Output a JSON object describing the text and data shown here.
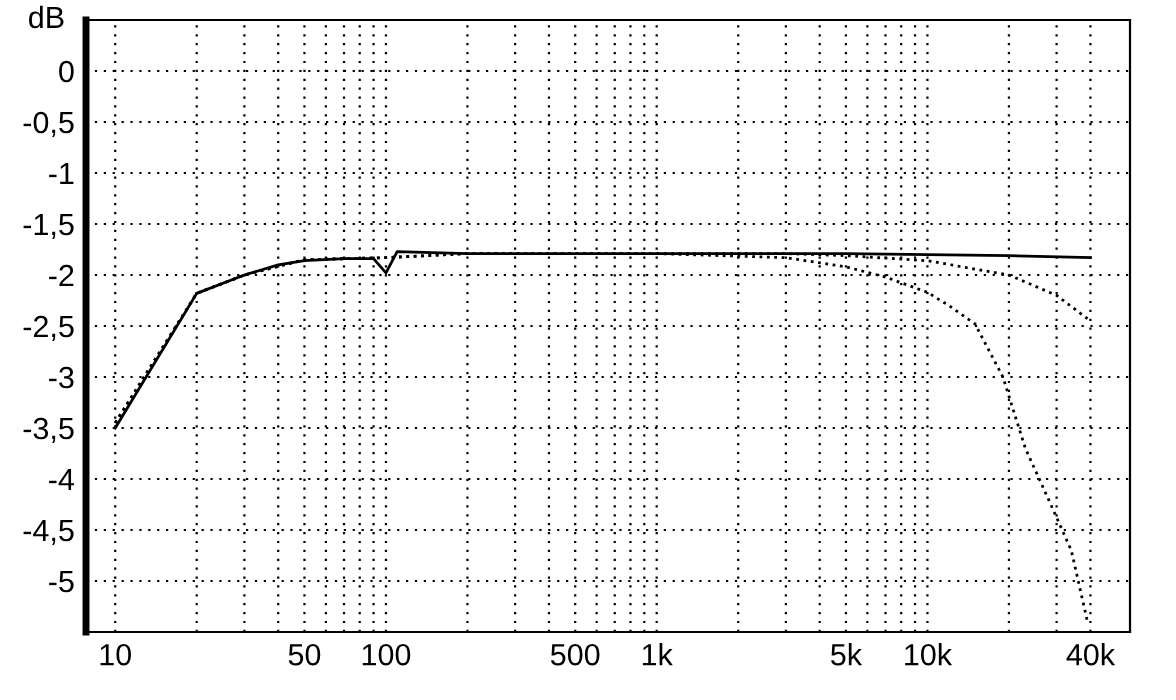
{
  "chart_data": {
    "type": "line",
    "ylabel": "dB",
    "log": "x",
    "grid": true,
    "marker": "none",
    "xlim": [
      7.8,
      56000
    ],
    "ylim": [
      -5.5,
      0.5
    ],
    "xticks": [
      10,
      {
        "value": 20,
        "label": null
      },
      {
        "value": 30,
        "label": null
      },
      {
        "value": 40,
        "label": null
      },
      50,
      {
        "value": 60,
        "label": null
      },
      {
        "value": 70,
        "label": null
      },
      {
        "value": 80,
        "label": null
      },
      {
        "value": 90,
        "label": null
      },
      100,
      {
        "value": 200,
        "label": null
      },
      {
        "value": 300,
        "label": null
      },
      {
        "value": 400,
        "label": null
      },
      500,
      {
        "value": 600,
        "label": null
      },
      {
        "value": 700,
        "label": null
      },
      {
        "value": 800,
        "label": null
      },
      {
        "value": 900,
        "label": null
      },
      {
        "value": 1000,
        "label": "1k"
      },
      {
        "value": 2000,
        "label": null
      },
      {
        "value": 3000,
        "label": null
      },
      {
        "value": 4000,
        "label": null
      },
      {
        "value": 5000,
        "label": "5k"
      },
      {
        "value": 6000,
        "label": null
      },
      {
        "value": 7000,
        "label": null
      },
      {
        "value": 8000,
        "label": null
      },
      {
        "value": 9000,
        "label": null
      },
      {
        "value": 10000,
        "label": "10k"
      },
      {
        "value": 20000,
        "label": null
      },
      {
        "value": 30000,
        "label": null
      },
      {
        "value": 40000,
        "label": "40k"
      }
    ],
    "yticks": [
      0,
      {
        "value": -0.5,
        "label": "-0,5"
      },
      {
        "value": -1,
        "label": "-1"
      },
      {
        "value": -1.5,
        "label": "-1,5"
      },
      {
        "value": -2,
        "label": "-2"
      },
      {
        "value": -2.5,
        "label": "-2,5"
      },
      {
        "value": -3,
        "label": "-3"
      },
      {
        "value": -3.5,
        "label": "-3,5"
      },
      {
        "value": -4,
        "label": "-4"
      },
      {
        "value": -4.5,
        "label": "-4,5"
      },
      {
        "value": -5,
        "label": "-5"
      }
    ],
    "series": [
      {
        "color": "#000000",
        "line_style": "solid",
        "x": [
          10,
          20,
          30,
          40,
          50,
          70,
          90,
          100,
          110,
          200,
          500,
          1000,
          5000,
          10000,
          20000,
          40000
        ],
        "values": [
          -3.5,
          -2.18,
          -2.0,
          -1.9,
          -1.86,
          -1.84,
          -1.84,
          -1.98,
          -1.77,
          -1.79,
          -1.79,
          -1.79,
          -1.79,
          -1.8,
          -1.81,
          -1.83
        ]
      },
      {
        "color": "#000000",
        "line_style": "dotted",
        "x": [
          10,
          20,
          30,
          50,
          100,
          200,
          1000,
          3000,
          5000,
          10000,
          20000,
          30000,
          40000
        ],
        "values": [
          -3.45,
          -2.18,
          -2.0,
          -1.85,
          -1.83,
          -1.79,
          -1.79,
          -1.79,
          -1.81,
          -1.86,
          -2.0,
          -2.2,
          -2.45
        ]
      },
      {
        "color": "#000000",
        "line_style": "dotted",
        "x": [
          10,
          20,
          30,
          50,
          100,
          200,
          1000,
          3000,
          5000,
          7000,
          10000,
          12000,
          15000,
          19000,
          23000,
          28000,
          34000,
          39000
        ],
        "values": [
          -3.45,
          -2.18,
          -2.0,
          -1.85,
          -1.83,
          -1.79,
          -1.79,
          -1.83,
          -1.92,
          -2.02,
          -2.17,
          -2.3,
          -2.48,
          -3.0,
          -3.7,
          -4.2,
          -4.7,
          -5.4
        ]
      }
    ]
  }
}
